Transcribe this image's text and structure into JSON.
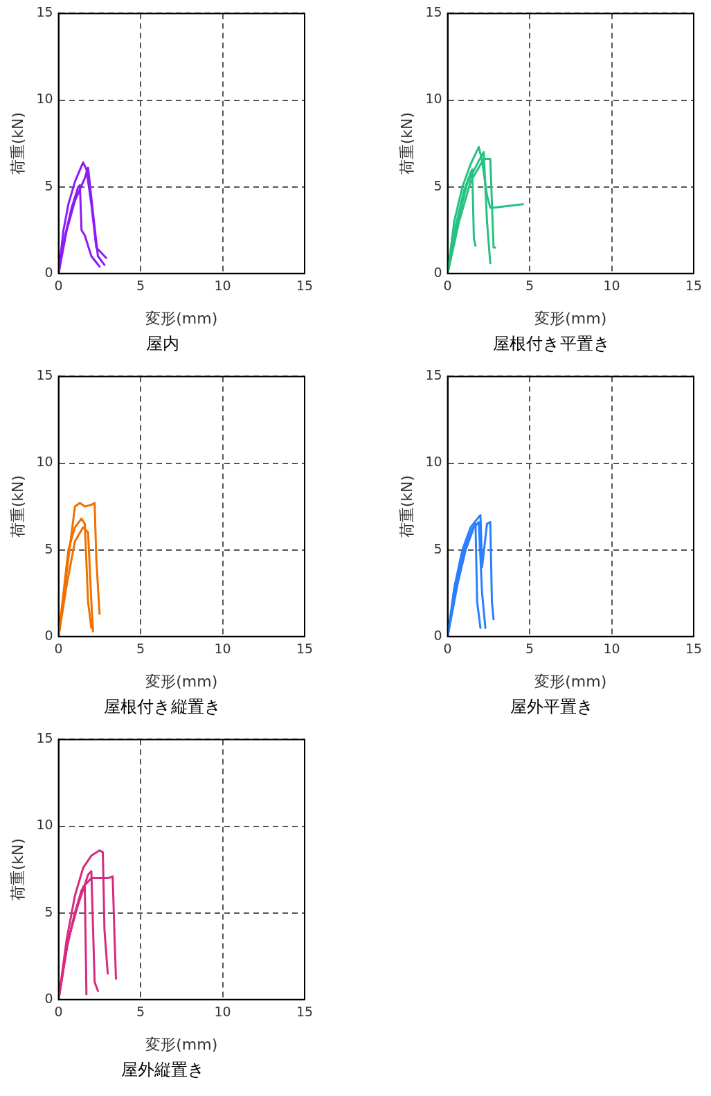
{
  "chart_data": [
    {
      "type": "line",
      "title": "屋内",
      "xlabel": "変形(mm)",
      "ylabel": "荷重(kN)",
      "xlim": [
        0,
        15
      ],
      "ylim": [
        0,
        15
      ],
      "xticks": [
        0,
        5,
        10,
        15
      ],
      "yticks": [
        0,
        5,
        10,
        15
      ],
      "grid": true,
      "legend": false,
      "marker": "none",
      "line_style": "solid",
      "series": [
        {
          "color": "#8b1cf7",
          "x": [
            0,
            0.3,
            0.6,
            1.0,
            1.4,
            1.5,
            1.7,
            2.0,
            2.3,
            2.9
          ],
          "values": [
            0,
            2.5,
            4.0,
            5.3,
            6.2,
            6.4,
            6.0,
            4.0,
            1.5,
            0.9
          ]
        },
        {
          "color": "#8b1cf7",
          "x": [
            0,
            0.4,
            0.8,
            1.2,
            1.3,
            1.4,
            1.6,
            2.0,
            2.5
          ],
          "values": [
            0,
            2.2,
            3.8,
            5.0,
            5.1,
            2.5,
            2.2,
            1.0,
            0.4
          ]
        },
        {
          "color": "#8b1cf7",
          "x": [
            0,
            0.5,
            1.0,
            1.6,
            1.8,
            2.1,
            2.4,
            2.8
          ],
          "values": [
            0,
            2.5,
            4.2,
            5.5,
            6.1,
            3.5,
            1.0,
            0.5
          ]
        }
      ]
    },
    {
      "type": "line",
      "title": "屋根付き平置き",
      "xlabel": "変形(mm)",
      "ylabel": "荷重(kN)",
      "xlim": [
        0,
        15
      ],
      "ylim": [
        0,
        15
      ],
      "xticks": [
        0,
        5,
        10,
        15
      ],
      "yticks": [
        0,
        5,
        10,
        15
      ],
      "grid": true,
      "legend": false,
      "marker": "none",
      "line_style": "solid",
      "series": [
        {
          "color": "#26c281",
          "x": [
            0,
            0.4,
            0.9,
            1.4,
            1.9,
            2.1,
            2.4,
            2.6,
            2.8,
            4.6
          ],
          "values": [
            0,
            3.0,
            5.0,
            6.3,
            7.3,
            6.5,
            4.5,
            3.8,
            3.8,
            4.0
          ]
        },
        {
          "color": "#26c281",
          "x": [
            0,
            0.5,
            1.0,
            1.4,
            1.5,
            1.6,
            1.7
          ],
          "values": [
            0,
            2.8,
            4.8,
            5.8,
            6.0,
            2.0,
            1.6
          ]
        },
        {
          "color": "#26c281",
          "x": [
            0,
            0.6,
            1.2,
            1.9,
            2.2,
            2.4,
            2.6
          ],
          "values": [
            0,
            3.0,
            5.2,
            6.5,
            7.0,
            3.0,
            0.6
          ]
        },
        {
          "color": "#26c281",
          "x": [
            0,
            0.7,
            1.4,
            2.2,
            2.6,
            2.8,
            2.9
          ],
          "values": [
            0,
            3.0,
            5.3,
            6.6,
            6.6,
            1.5,
            1.5
          ]
        }
      ]
    },
    {
      "type": "line",
      "title": "屋根付き縦置き",
      "xlabel": "変形(mm)",
      "ylabel": "荷重(kN)",
      "xlim": [
        0,
        15
      ],
      "ylim": [
        0,
        15
      ],
      "xticks": [
        0,
        5,
        10,
        15
      ],
      "yticks": [
        0,
        5,
        10,
        15
      ],
      "grid": true,
      "legend": false,
      "marker": "none",
      "line_style": "solid",
      "series": [
        {
          "color": "#f07000",
          "x": [
            0,
            0.4,
            0.8,
            1.0,
            1.3,
            1.6,
            2.0,
            2.2,
            2.3,
            2.5
          ],
          "values": [
            0,
            3.0,
            6.0,
            7.5,
            7.7,
            7.5,
            7.6,
            7.7,
            4.5,
            1.3
          ]
        },
        {
          "color": "#f07000",
          "x": [
            0,
            0.3,
            0.6,
            1.0,
            1.4,
            1.6,
            1.8,
            2.0
          ],
          "values": [
            0,
            2.5,
            5.0,
            6.3,
            6.8,
            6.5,
            2.0,
            0.5
          ]
        },
        {
          "color": "#f07000",
          "x": [
            0,
            0.5,
            1.0,
            1.5,
            1.8,
            2.0,
            2.1
          ],
          "values": [
            0,
            3.0,
            5.5,
            6.3,
            6.0,
            2.0,
            0.3
          ]
        }
      ]
    },
    {
      "type": "line",
      "title": "屋外平置き",
      "xlabel": "変形(mm)",
      "ylabel": "荷重(kN)",
      "xlim": [
        0,
        15
      ],
      "ylim": [
        0,
        15
      ],
      "xticks": [
        0,
        5,
        10,
        15
      ],
      "yticks": [
        0,
        5,
        10,
        15
      ],
      "grid": true,
      "legend": false,
      "marker": "none",
      "line_style": "solid",
      "series": [
        {
          "color": "#2a7fff",
          "x": [
            0,
            0.4,
            0.9,
            1.4,
            1.9,
            2.0,
            2.1,
            2.4,
            2.6,
            2.7,
            2.8
          ],
          "values": [
            0,
            2.8,
            5.0,
            6.3,
            6.9,
            7.0,
            4.0,
            6.5,
            6.6,
            2.0,
            1.0
          ]
        },
        {
          "color": "#2a7fff",
          "x": [
            0,
            0.5,
            1.0,
            1.5,
            1.7,
            1.8,
            2.0
          ],
          "values": [
            0,
            3.0,
            5.0,
            6.2,
            6.5,
            2.0,
            0.5
          ]
        },
        {
          "color": "#2a7fff",
          "x": [
            0,
            0.6,
            1.1,
            1.6,
            1.9,
            2.1,
            2.3
          ],
          "values": [
            0,
            3.0,
            5.0,
            6.3,
            6.6,
            2.5,
            0.5
          ]
        }
      ]
    },
    {
      "type": "line",
      "title": "屋外縦置き",
      "xlabel": "変形(mm)",
      "ylabel": "荷重(kN)",
      "xlim": [
        0,
        15
      ],
      "ylim": [
        0,
        15
      ],
      "xticks": [
        0,
        5,
        10,
        15
      ],
      "yticks": [
        0,
        5,
        10,
        15
      ],
      "grid": true,
      "legend": false,
      "marker": "none",
      "line_style": "solid",
      "series": [
        {
          "color": "#d62b7e",
          "x": [
            0,
            0.5,
            1.0,
            1.5,
            2.0,
            2.5,
            2.7,
            2.8,
            3.0
          ],
          "values": [
            0,
            3.5,
            6.0,
            7.6,
            8.3,
            8.6,
            8.5,
            4.0,
            1.5
          ]
        },
        {
          "color": "#d62b7e",
          "x": [
            0,
            0.5,
            1.0,
            1.5,
            2.0,
            2.5,
            3.0,
            3.3,
            3.4,
            3.5
          ],
          "values": [
            0,
            3.0,
            5.0,
            6.5,
            7.0,
            7.0,
            7.0,
            7.1,
            4.0,
            1.2
          ]
        },
        {
          "color": "#d62b7e",
          "x": [
            0,
            0.5,
            1.0,
            1.4,
            1.6,
            1.7
          ],
          "values": [
            0,
            3.0,
            5.0,
            6.3,
            6.5,
            0.3
          ]
        },
        {
          "color": "#d62b7e",
          "x": [
            0,
            0.6,
            1.2,
            1.8,
            2.0,
            2.2,
            2.4
          ],
          "values": [
            0,
            3.5,
            5.5,
            7.2,
            7.4,
            1.0,
            0.5
          ]
        }
      ]
    }
  ]
}
